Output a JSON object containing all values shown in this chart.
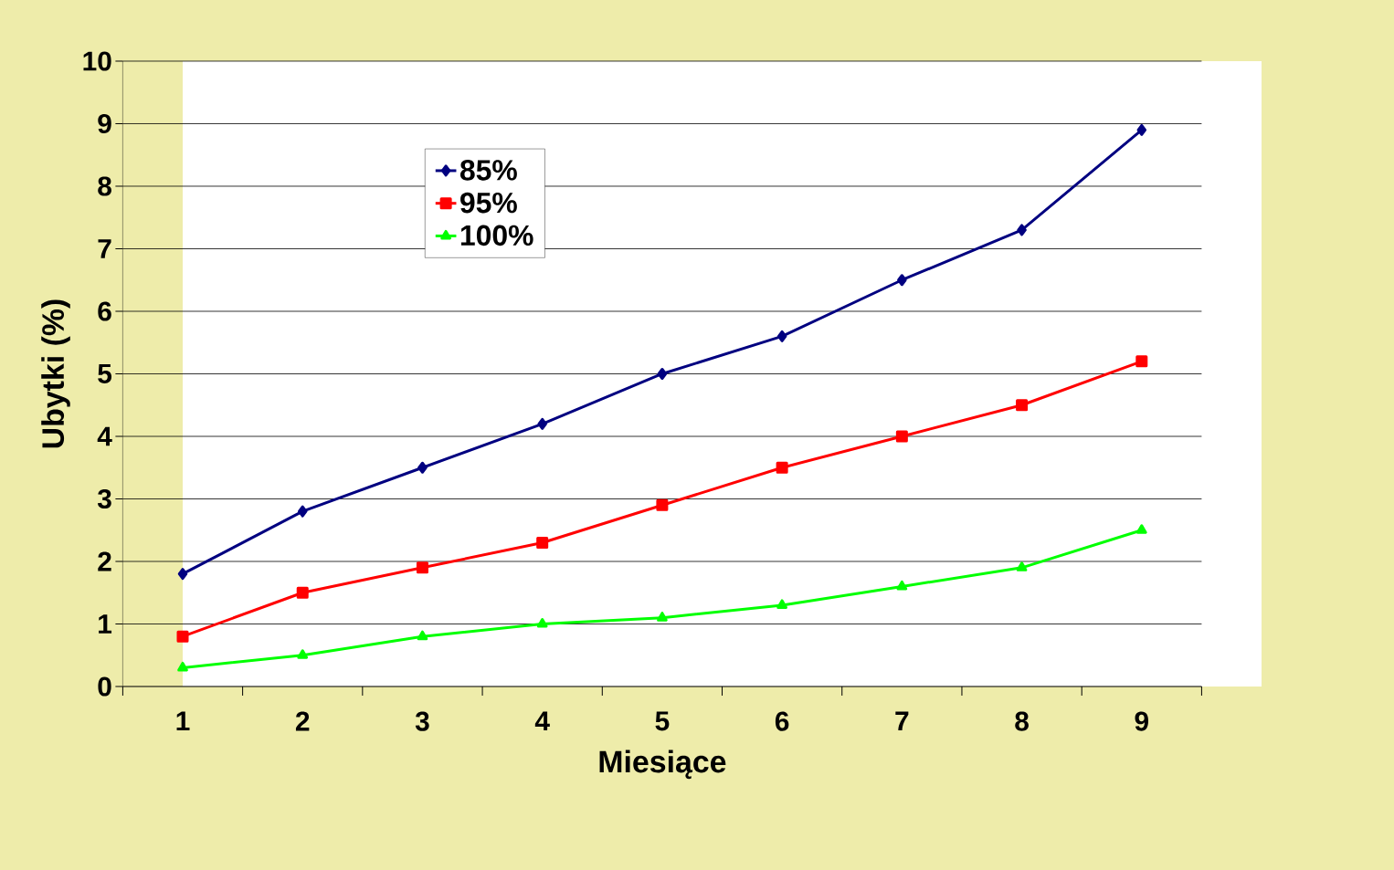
{
  "chart_data": {
    "type": "line",
    "xlabel": "Miesiące",
    "ylabel": "Ubytki (%)",
    "categories": [
      "1",
      "2",
      "3",
      "4",
      "5",
      "6",
      "7",
      "8",
      "9"
    ],
    "series": [
      {
        "name": "85%",
        "color": "#000080",
        "marker": "diamond",
        "values": [
          1.8,
          2.8,
          3.5,
          4.2,
          5.0,
          5.6,
          6.5,
          7.3,
          8.9
        ]
      },
      {
        "name": "95%",
        "color": "#ff0000",
        "marker": "square",
        "values": [
          0.8,
          1.5,
          1.9,
          2.3,
          2.9,
          3.5,
          4.0,
          4.5,
          5.2
        ]
      },
      {
        "name": "100%",
        "color": "#00ff00",
        "marker": "triangle",
        "values": [
          0.3,
          0.5,
          0.8,
          1.0,
          1.1,
          1.3,
          1.6,
          1.9,
          2.5
        ]
      }
    ],
    "ylim": [
      0,
      10
    ],
    "yticks": [
      0,
      1,
      2,
      3,
      4,
      5,
      6,
      7,
      8,
      9,
      10
    ],
    "grid": "y",
    "legend": "top left",
    "line_style": "solid"
  }
}
